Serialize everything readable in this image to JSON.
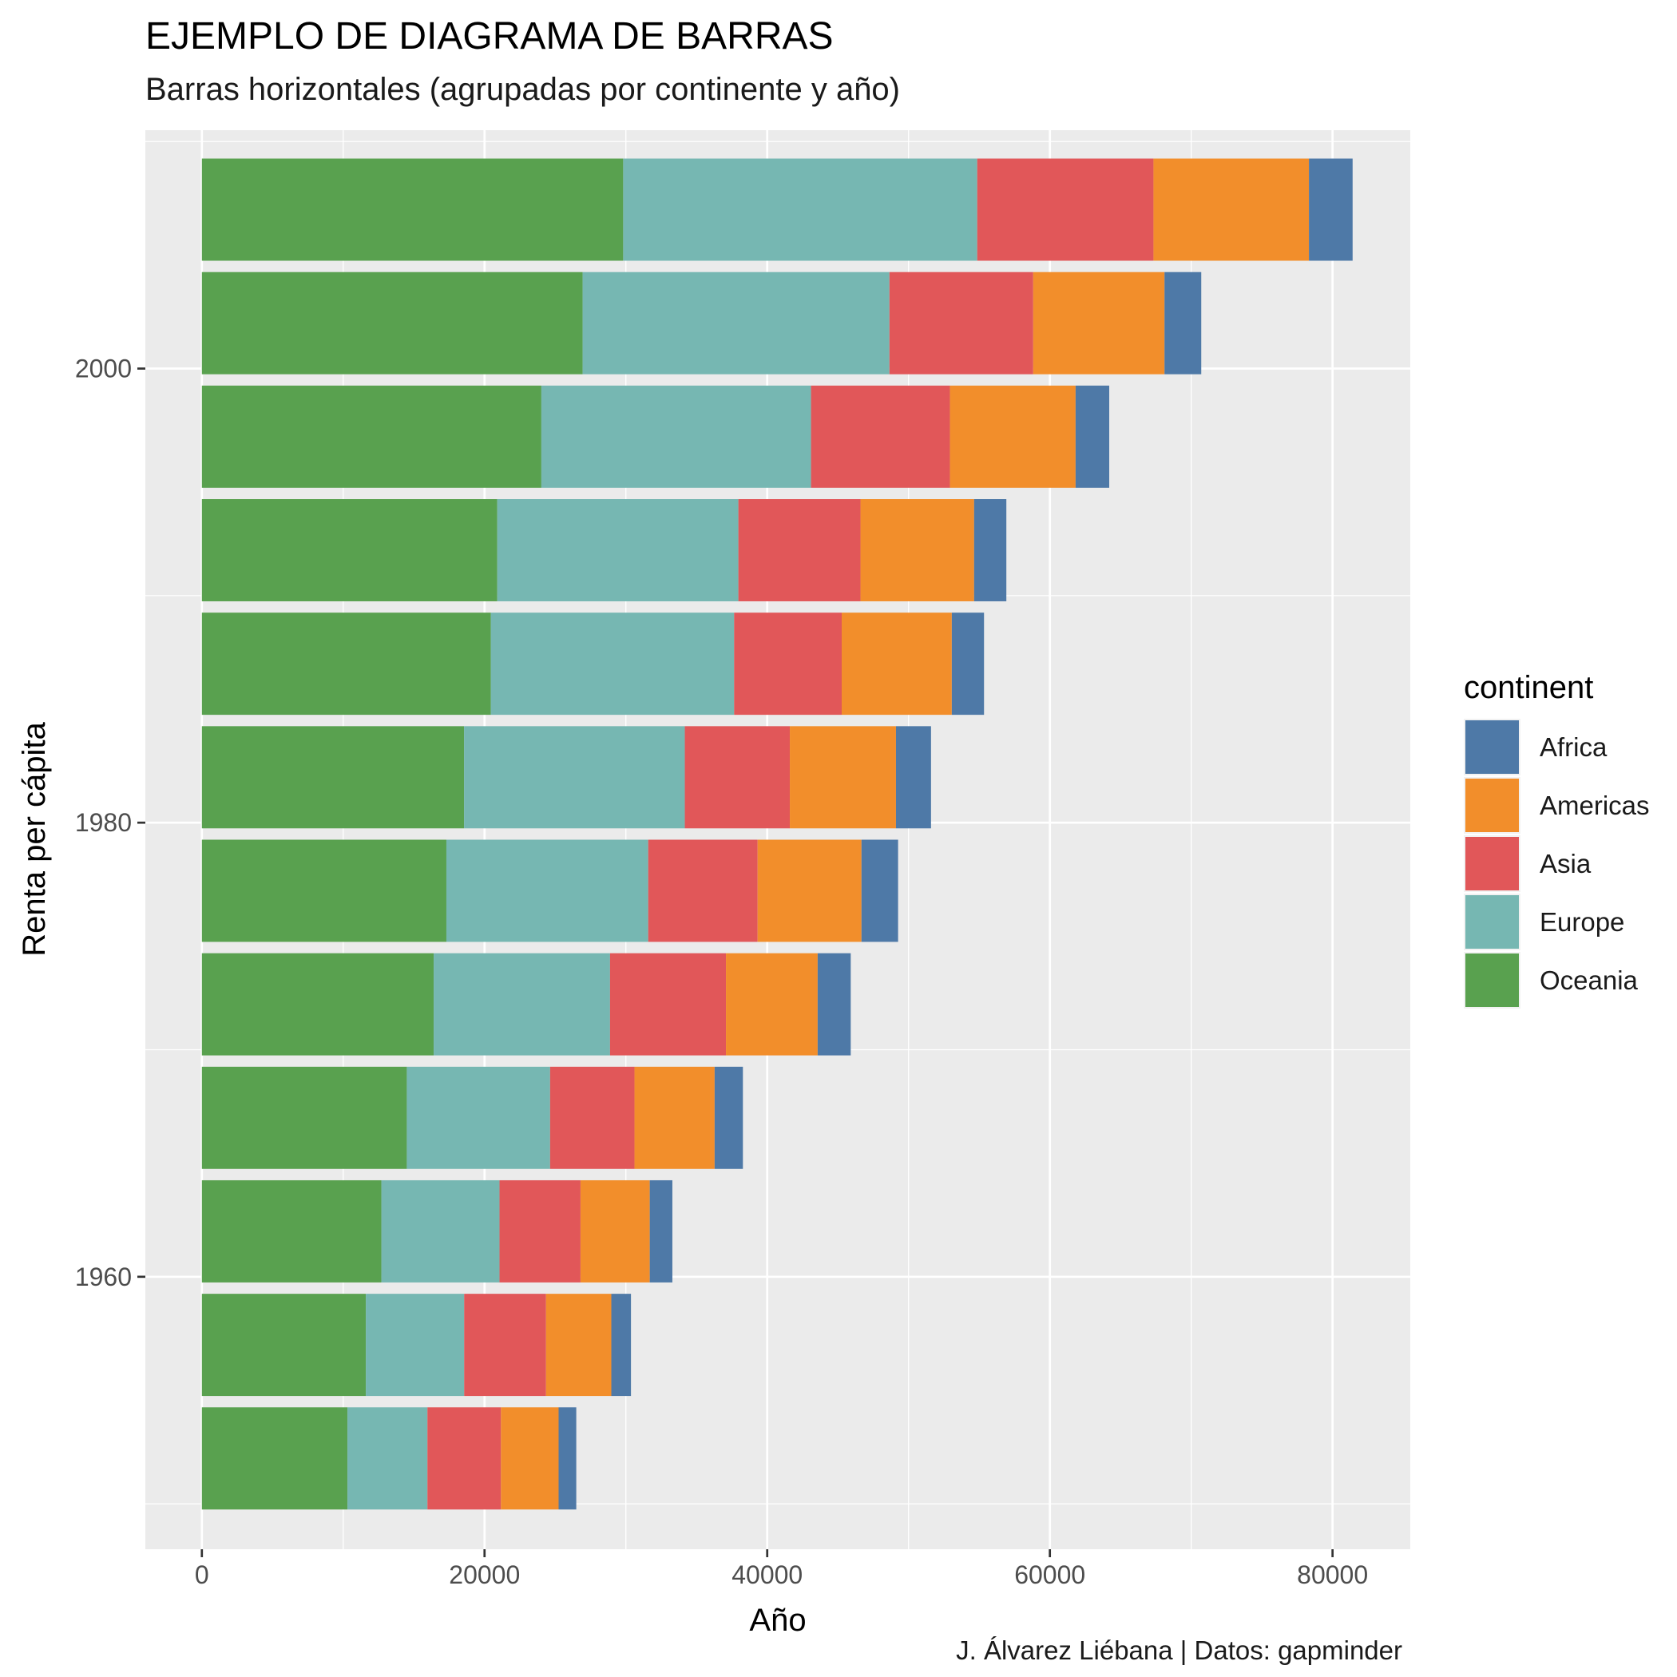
{
  "title": "EJEMPLO DE DIAGRAMA DE BARRAS",
  "subtitle": "Barras horizontales (agrupadas por continente y año)",
  "caption": "J. Álvarez Liébana | Datos: gapminder",
  "chart_data": {
    "type": "bar",
    "orientation": "horizontal",
    "stacked": true,
    "xlabel": "Año",
    "ylabel": "Renta per cápita",
    "xlim": [
      -4000,
      85500
    ],
    "ylim": [
      1948,
      2010.5
    ],
    "x_ticks": [
      0,
      20000,
      40000,
      60000,
      80000
    ],
    "y_ticks": [
      1960,
      1980,
      2000
    ],
    "grid": true,
    "legend_title": "continent",
    "legend_position": "right",
    "categories": [
      1952,
      1957,
      1962,
      1967,
      1972,
      1977,
      1982,
      1987,
      1992,
      1997,
      2002,
      2007
    ],
    "stack_order": [
      "Oceania",
      "Europe",
      "Asia",
      "Americas",
      "Africa"
    ],
    "series": [
      {
        "name": "Africa",
        "color": "#4e79a7",
        "values": [
          1250,
          1390,
          1600,
          2000,
          2340,
          2590,
          2480,
          2280,
          2280,
          2380,
          2600,
          3090
        ]
      },
      {
        "name": "Americas",
        "color": "#f28e2b",
        "values": [
          4080,
          4620,
          4900,
          5670,
          6490,
          7350,
          7510,
          7790,
          8040,
          8890,
          9290,
          11000
        ]
      },
      {
        "name": "Asia",
        "color": "#e15759",
        "values": [
          5200,
          5790,
          5730,
          5970,
          8200,
          7740,
          7430,
          7610,
          8640,
          9830,
          10170,
          12470
        ]
      },
      {
        "name": "Europe",
        "color": "#76b7b2",
        "values": [
          5660,
          6960,
          8360,
          10140,
          12480,
          14280,
          15620,
          17210,
          17060,
          19080,
          21710,
          25050
        ]
      },
      {
        "name": "Oceania",
        "color": "#59a14f",
        "values": [
          10300,
          11600,
          12700,
          14500,
          16400,
          17300,
          18550,
          20450,
          20900,
          24020,
          26940,
          29810
        ]
      }
    ]
  }
}
